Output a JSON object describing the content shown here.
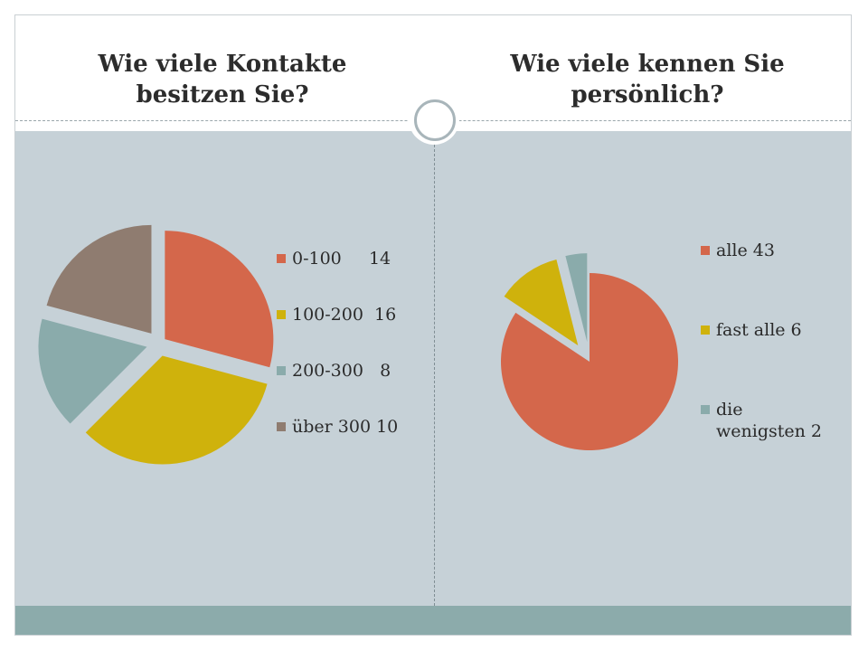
{
  "slide": {
    "title_left": "Wie viele Kontakte besitzen Sie?",
    "title_right": "Wie viele kennen Sie persönlich?"
  },
  "colors": {
    "orange": "#d4674b",
    "yellow": "#cfb20c",
    "teal": "#8aabab",
    "brown": "#8f7c70",
    "content_bg": "#c6d1d7",
    "bottom_band": "#8cabab"
  },
  "chart_data": [
    {
      "type": "pie",
      "title": "Wie viele Kontakte besitzen Sie?",
      "exploded": true,
      "slices": [
        {
          "label": "0-100     14",
          "value": 14,
          "color": "#d4674b"
        },
        {
          "label": "100-200  16",
          "value": 16,
          "color": "#cfb20c"
        },
        {
          "label": "200-300   8",
          "value": 8,
          "color": "#8aabab"
        },
        {
          "label": "über 300 10",
          "value": 10,
          "color": "#8f7c70"
        }
      ],
      "legend_position": "right"
    },
    {
      "type": "pie",
      "title": "Wie viele kennen Sie persönlich?",
      "exploded": true,
      "slices": [
        {
          "label": "alle 43",
          "value": 43,
          "color": "#d4674b"
        },
        {
          "label": "fast alle 6",
          "value": 6,
          "color": "#cfb20c"
        },
        {
          "label": "die wenigsten 2",
          "label_lines": [
            "die",
            "wenigsten 2"
          ],
          "value": 2,
          "color": "#8aabab"
        }
      ],
      "legend_position": "right"
    }
  ]
}
